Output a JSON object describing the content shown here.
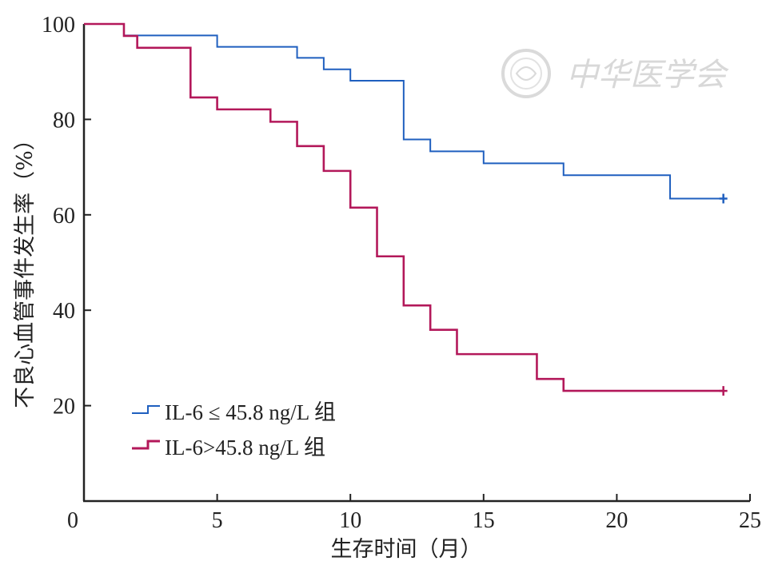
{
  "watermark": {
    "text": "中华医学会"
  },
  "chart_data": {
    "type": "line",
    "step": true,
    "title": "",
    "xlabel": "生存时间（月）",
    "ylabel": "不良心血管事件发生率（%）",
    "xlim": [
      0,
      25
    ],
    "ylim": [
      0,
      100
    ],
    "xticks": [
      0,
      5,
      10,
      15,
      20,
      25
    ],
    "yticks": [
      20,
      40,
      60,
      80,
      100
    ],
    "grid": false,
    "legend_position": "bottom-left",
    "series": [
      {
        "name": "IL-6 ≤ 45.8 ng/L 组",
        "color": "#1f5fbf",
        "x": [
          0.5,
          1.5,
          5,
          8,
          9,
          10,
          12,
          13,
          15,
          18,
          22,
          24
        ],
        "y": [
          100,
          97.6,
          95.2,
          92.9,
          90.5,
          88.1,
          75.8,
          73.3,
          70.8,
          68.3,
          63.4,
          63.4
        ],
        "censored": [
          {
            "x": 24,
            "y": 63.4
          }
        ]
      },
      {
        "name": "IL-6>45.8 ng/L 组",
        "color": "#b3185a",
        "x": [
          0.5,
          1.5,
          2,
          4,
          5,
          7,
          8,
          9,
          10,
          11,
          12,
          13,
          14,
          17,
          18,
          24
        ],
        "y": [
          100,
          97.5,
          95,
          84.6,
          82.1,
          79.5,
          74.4,
          69.2,
          61.5,
          51.3,
          41,
          35.9,
          30.8,
          25.6,
          23.1,
          23.1
        ],
        "censored": [
          {
            "x": 24,
            "y": 23.1
          }
        ]
      }
    ]
  }
}
